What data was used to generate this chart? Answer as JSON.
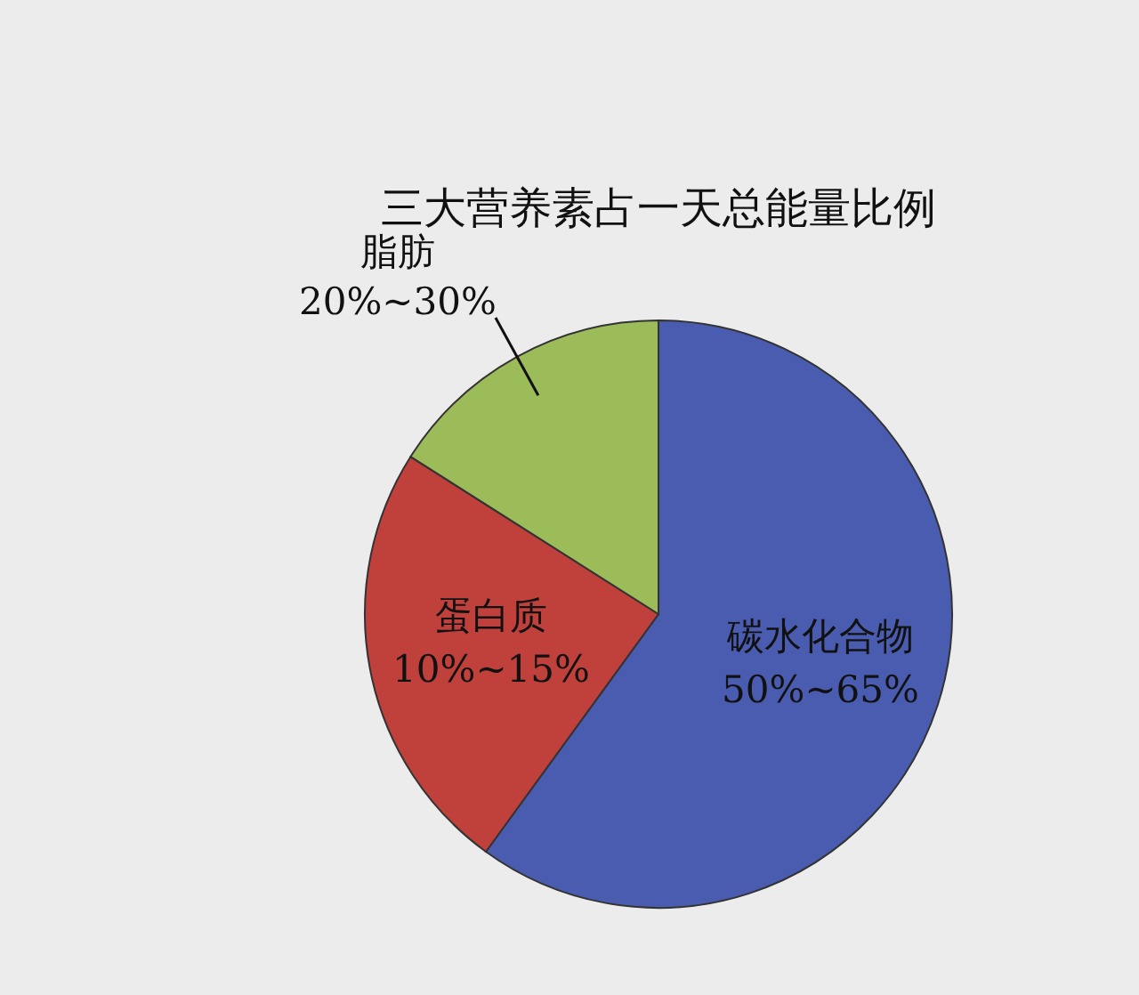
{
  "chart_data": {
    "type": "pie",
    "title": "三大营养素占一天总能量比例",
    "categories": [
      "碳水化合物",
      "蛋白质",
      "脂肪"
    ],
    "values": [
      60,
      24,
      16
    ],
    "colors": [
      "#4a5cb0",
      "#c0403c",
      "#9cbc5a"
    ],
    "annotations": [
      "50%~65%",
      "10%~15%",
      "20%~30%"
    ],
    "legend": false
  }
}
